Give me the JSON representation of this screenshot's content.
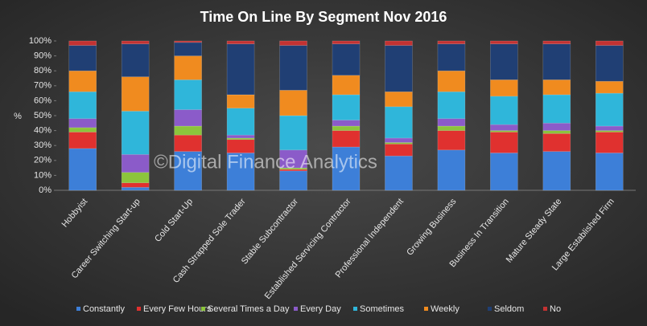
{
  "chart_data": {
    "type": "stacked_bar_100",
    "title": "Time On Line By Segment Nov 2016",
    "y_label": "%",
    "watermark": "©Digital Finance Analytics",
    "categories": [
      "Hobbyist",
      "Career Switching Start-up",
      "Cold Start-Up",
      "Cash Strapped Sole Trader",
      "Stable Subcontractor",
      "Established Servicing Contractor",
      "Professional Independent",
      "Growing Business",
      "Business In Transition",
      "Mature Steady State",
      "Large Established Firm"
    ],
    "series": [
      {
        "name": "Constantly",
        "color": "#3d7fd8",
        "values": [
          28,
          2,
          26,
          25,
          13,
          29,
          23,
          27,
          25,
          26,
          25
        ]
      },
      {
        "name": "Every Few Hours",
        "color": "#e0312f",
        "values": [
          11,
          3,
          11,
          9,
          1,
          11,
          8,
          13,
          14,
          12,
          14
        ]
      },
      {
        "name": "Several Times a Day",
        "color": "#8cc43c",
        "values": [
          3,
          7,
          6,
          1,
          1,
          3,
          1,
          3,
          1,
          2,
          1
        ]
      },
      {
        "name": "Every Day",
        "color": "#8b5bc9",
        "values": [
          6,
          12,
          11,
          2,
          12,
          4,
          3,
          5,
          4,
          5,
          3
        ]
      },
      {
        "name": "Sometimes",
        "color": "#2fb6da",
        "values": [
          18,
          29,
          20,
          18,
          23,
          17,
          21,
          18,
          19,
          19,
          22
        ]
      },
      {
        "name": "Weekly",
        "color": "#f08b1f",
        "values": [
          14,
          23,
          16,
          9,
          17,
          13,
          10,
          14,
          11,
          10,
          8
        ]
      },
      {
        "name": "Seldom",
        "color": "#203f74",
        "values": [
          17,
          22,
          9,
          34,
          30,
          21,
          31,
          18,
          24,
          24,
          24
        ]
      },
      {
        "name": "No",
        "color": "#c33232",
        "values": [
          3,
          2,
          1,
          2,
          3,
          2,
          3,
          2,
          2,
          2,
          3
        ]
      }
    ],
    "ylim": [
      0,
      100
    ],
    "yticks": [
      {
        "value": 0,
        "label": "0%"
      },
      {
        "value": 10,
        "label": "10%"
      },
      {
        "value": 20,
        "label": "20%"
      },
      {
        "value": 30,
        "label": "30%"
      },
      {
        "value": 40,
        "label": "40%"
      },
      {
        "value": 50,
        "label": "50%"
      },
      {
        "value": 60,
        "label": "60%"
      },
      {
        "value": 70,
        "label": "70%"
      },
      {
        "value": 80,
        "label": "80%"
      },
      {
        "value": 90,
        "label": "90%"
      },
      {
        "value": 100,
        "label": "100%"
      }
    ],
    "legend": "bottom"
  }
}
